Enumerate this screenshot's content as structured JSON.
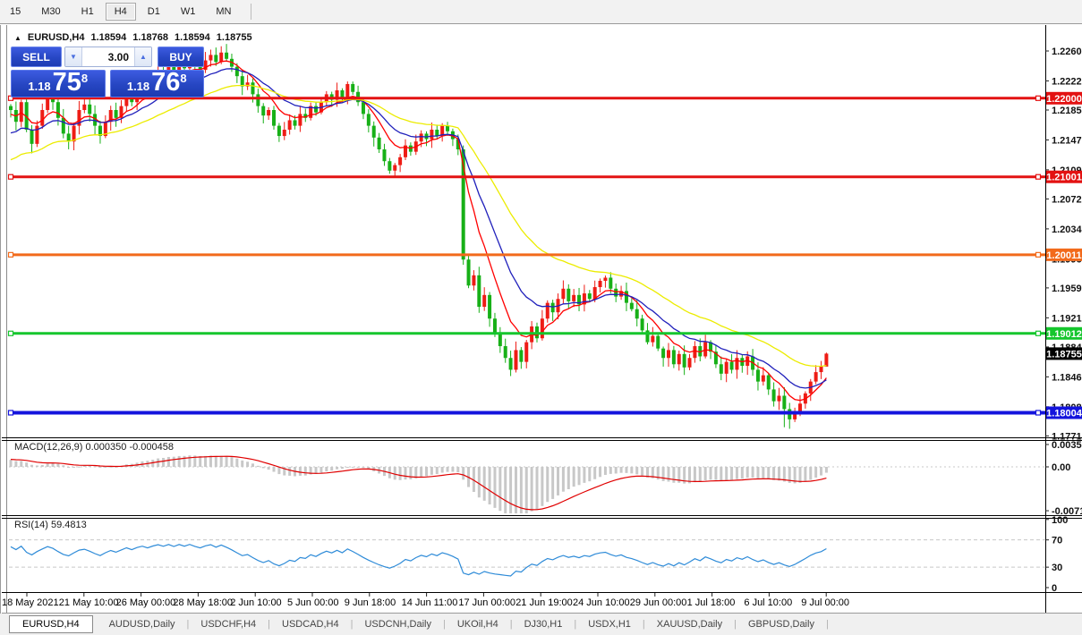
{
  "toolbar": {
    "timeframes": [
      {
        "label": "15",
        "active": false
      },
      {
        "label": "M30",
        "active": false
      },
      {
        "label": "H1",
        "active": false
      },
      {
        "label": "H4",
        "active": true
      },
      {
        "label": "D1",
        "active": false
      },
      {
        "label": "W1",
        "active": false
      },
      {
        "label": "MN",
        "active": false
      }
    ]
  },
  "chart_header": {
    "collapse_icon": "▲",
    "symbol_period": "EURUSD,H4",
    "open": "1.18594",
    "high": "1.18768",
    "low": "1.18594",
    "close": "1.18755"
  },
  "trade_panel": {
    "sell_label": "SELL",
    "buy_label": "BUY",
    "volume": "3.00",
    "sell_price": {
      "small": "1.18",
      "big": "75",
      "sup": "8"
    },
    "buy_price": {
      "small": "1.18",
      "big": "76",
      "sup": "8"
    }
  },
  "indicators": {
    "macd_label": "MACD(12,26,9)",
    "macd_value": "0.000350",
    "macd_signal_value": "-0.000458",
    "rsi_label": "RSI(14)",
    "rsi_value": "59.4813"
  },
  "bottom_tabs": [
    {
      "label": "EURUSD,H4",
      "active": true
    },
    {
      "label": "AUDUSD,Daily",
      "active": false
    },
    {
      "label": "USDCHF,H4",
      "active": false
    },
    {
      "label": "USDCAD,H4",
      "active": false
    },
    {
      "label": "USDCNH,Daily",
      "active": false
    },
    {
      "label": "UKOil,H4",
      "active": false
    },
    {
      "label": "DJ30,H1",
      "active": false
    },
    {
      "label": "USDX,H1",
      "active": false
    },
    {
      "label": "XAUUSD,Daily",
      "active": false
    },
    {
      "label": "GBPUSD,Daily",
      "active": false
    }
  ],
  "chart_data": {
    "type": "candlestick",
    "symbol": "EURUSD",
    "timeframe": "H4",
    "price_axis": {
      "min": 1.1768,
      "max": 1.2285,
      "labels": [
        "1.22600",
        "1.22220",
        "1.21850",
        "1.21470",
        "1.21090",
        "1.20720",
        "1.20340",
        "1.19960",
        "1.19590",
        "1.19210",
        "1.18840",
        "1.18460",
        "1.18080",
        "1.17710"
      ]
    },
    "x_axis_labels": [
      "18 May 2021",
      "21 May 10:00",
      "26 May 00:00",
      "28 May 18:00",
      "2 Jun 10:00",
      "5 Jun 00:00",
      "9 Jun 18:00",
      "14 Jun 11:00",
      "17 Jun 00:00",
      "21 Jun 19:00",
      "24 Jun 10:00",
      "29 Jun 00:00",
      "1 Jul 18:00",
      "6 Jul 10:00",
      "9 Jul 00:00"
    ],
    "hlines": [
      {
        "price": 1.22,
        "label": "1.22000",
        "color": "#e31212",
        "width": 3
      },
      {
        "price": 1.21001,
        "label": "1.21001",
        "color": "#e31212",
        "width": 3
      },
      {
        "price": 1.20011,
        "label": "1.20011",
        "color": "#f26a1b",
        "width": 3
      },
      {
        "price": 1.19012,
        "label": "1.19012",
        "color": "#15c62d",
        "width": 3
      },
      {
        "price": 1.18004,
        "label": "1.18004",
        "color": "#1414dd",
        "width": 4
      }
    ],
    "current_price": {
      "value": 1.18755,
      "label": "1.18755",
      "bg": "#000000",
      "fg": "#ffffff"
    },
    "colors": {
      "bull": "#ee1c15",
      "bear": "#17b017",
      "ma_fast": "#ff0000",
      "ma_mid": "#2020bb",
      "ma_slow": "#ecec00",
      "macd_hist": "#c8c8c8",
      "macd_signal": "#e00000",
      "rsi_line": "#2e8bd8",
      "grid_dash": "#c8c8c8"
    },
    "ma_settings": [
      {
        "period": 8,
        "seed": 1.2178,
        "color_key": "ma_fast"
      },
      {
        "period": 16,
        "seed": 1.2152,
        "color_key": "ma_mid"
      },
      {
        "period": 34,
        "seed": 1.2118,
        "color_key": "ma_slow"
      }
    ],
    "macd": {
      "params": [
        12,
        26,
        9
      ],
      "range": [
        -0.007178,
        0.003515
      ],
      "axis_labels": [
        "0.003515",
        "0.00",
        "-0.007178"
      ]
    },
    "rsi": {
      "period": 14,
      "levels": [
        70,
        30
      ],
      "axis_labels": [
        "100",
        "70",
        "30",
        "0"
      ]
    },
    "candles": {
      "first_open": 1.219,
      "closes": [
        1.2185,
        1.217,
        1.2195,
        1.216,
        1.2142,
        1.2165,
        1.2185,
        1.2205,
        1.2195,
        1.2175,
        1.2155,
        1.2145,
        1.2165,
        1.2185,
        1.2192,
        1.218,
        1.2165,
        1.2152,
        1.217,
        1.2185,
        1.2175,
        1.219,
        1.2205,
        1.2195,
        1.221,
        1.222,
        1.2212,
        1.2225,
        1.2235,
        1.2228,
        1.224,
        1.2232,
        1.2245,
        1.2238,
        1.225,
        1.2242,
        1.2236,
        1.2248,
        1.2255,
        1.2246,
        1.2258,
        1.225,
        1.224,
        1.2228,
        1.2215,
        1.222,
        1.2205,
        1.219,
        1.2178,
        1.2185,
        1.2165,
        1.2152,
        1.216,
        1.2172,
        1.2165,
        1.218,
        1.2175,
        1.219,
        1.2182,
        1.2195,
        1.2205,
        1.2198,
        1.221,
        1.22,
        1.2218,
        1.2208,
        1.2195,
        1.218,
        1.2165,
        1.215,
        1.2135,
        1.212,
        1.2108,
        1.2115,
        1.2125,
        1.214,
        1.2132,
        1.2145,
        1.2155,
        1.2148,
        1.216,
        1.2152,
        1.2165,
        1.2158,
        1.2148,
        1.2135,
        1.1995,
        1.1962,
        1.1975,
        1.1935,
        1.195,
        1.192,
        1.19,
        1.1885,
        1.187,
        1.1855,
        1.188,
        1.1865,
        1.189,
        1.191,
        1.1895,
        1.192,
        1.194,
        1.1928,
        1.1945,
        1.1958,
        1.1942,
        1.195,
        1.1938,
        1.1952,
        1.1945,
        1.196,
        1.1968,
        1.1972,
        1.1958,
        1.1948,
        1.1955,
        1.194,
        1.1932,
        1.192,
        1.1905,
        1.189,
        1.1898,
        1.1882,
        1.187,
        1.188,
        1.1862,
        1.1875,
        1.1858,
        1.187,
        1.1885,
        1.1872,
        1.189,
        1.1878,
        1.1862,
        1.185,
        1.1865,
        1.1855,
        1.187,
        1.186,
        1.1872,
        1.1855,
        1.184,
        1.1848,
        1.183,
        1.1815,
        1.1822,
        1.1805,
        1.1792,
        1.18,
        1.1812,
        1.1825,
        1.184,
        1.1852,
        1.1859,
        1.18755
      ],
      "wick_overrides": {
        "4": {
          "low": 1.213
        },
        "28": {
          "high": 1.2262
        },
        "40": {
          "high": 1.2266
        },
        "72": {
          "low": 1.2104
        },
        "86": {
          "high": 1.214
        },
        "95": {
          "low": 1.1847
        },
        "147": {
          "low": 1.1782
        },
        "148": {
          "low": 1.178
        },
        "155": {
          "high": 1.18768,
          "low": 1.18594
        }
      }
    }
  }
}
